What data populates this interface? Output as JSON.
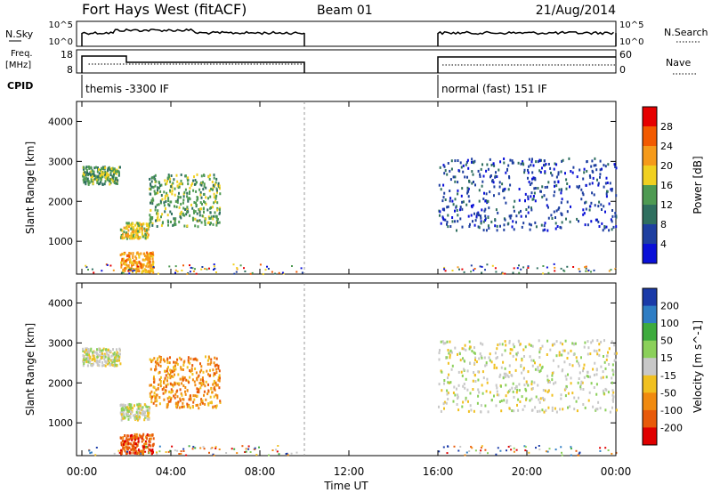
{
  "title": {
    "left": "Fort Hays West (fitACF)",
    "center": "Beam 01",
    "right": "21/Aug/2014"
  },
  "top_panels": {
    "nsky": {
      "label": "N.Sky",
      "left_ticks": [
        "10^5",
        "10^0"
      ],
      "right_ticks": [
        "10^5",
        "10^0"
      ],
      "right_label": "N.Search"
    },
    "freq": {
      "label_line1": "Freq.",
      "label_line2": "[MHz]",
      "left_ticks": [
        "18",
        "8"
      ],
      "right_ticks": [
        "60",
        "0"
      ],
      "right_label": "Nave"
    },
    "cpid": {
      "label": "CPID",
      "segments": [
        {
          "text": "themis -3300 IF",
          "start": 0,
          "end": 10
        },
        {
          "text": "normal (fast) 151 IF",
          "start": 16,
          "end": 24
        }
      ]
    }
  },
  "chart_data": [
    {
      "type": "heatmap",
      "title": "Power",
      "ylabel": "Slant Range [km]",
      "xlabel": "Time UT",
      "x_ticks": [
        "00:00",
        "04:00",
        "08:00",
        "12:00",
        "16:00",
        "20:00",
        "00:00"
      ],
      "xlim_hours": [
        0,
        24
      ],
      "y_ticks": [
        1000,
        2000,
        3000,
        4000
      ],
      "ylim": [
        180,
        4500
      ],
      "colorbar_label": "Power [dB]",
      "colorbar_ticks": [
        "28",
        "24",
        "20",
        "16",
        "12",
        "8",
        "4"
      ],
      "colorbar_colors": [
        "#e60000",
        "#f25a00",
        "#f59a1a",
        "#f0d020",
        "#4e9a52",
        "#2f6f5f",
        "#1e3fa0",
        "#0a10d8"
      ],
      "data_gap_hours": [
        10,
        16
      ],
      "echo_regions": [
        {
          "t0": 0,
          "t1": 1.7,
          "r0": 2450,
          "r1": 2900,
          "power_db": 14
        },
        {
          "t0": 1.7,
          "t1": 3.0,
          "r0": 1100,
          "r1": 1500,
          "power_db": 16
        },
        {
          "t0": 3.0,
          "t1": 6.2,
          "r0": 1400,
          "r1": 2700,
          "power_db": 14
        },
        {
          "t0": 1.7,
          "t1": 3.2,
          "r0": 250,
          "r1": 750,
          "power_db": 20
        },
        {
          "t0": 16,
          "t1": 24,
          "r0": 1300,
          "r1": 3100,
          "power_db": 6
        }
      ]
    },
    {
      "type": "heatmap",
      "title": "Velocity",
      "ylabel": "Slant Range [km]",
      "xlabel": "Time UT",
      "x_ticks": [
        "00:00",
        "04:00",
        "08:00",
        "12:00",
        "16:00",
        "20:00",
        "00:00"
      ],
      "xlim_hours": [
        0,
        24
      ],
      "y_ticks": [
        1000,
        2000,
        3000,
        4000
      ],
      "ylim": [
        180,
        4500
      ],
      "colorbar_label": "Velocity [m s^-1]",
      "colorbar_ticks": [
        "200",
        "100",
        "50",
        "15",
        "-15",
        "-50",
        "-100",
        "-200"
      ],
      "colorbar_colors": [
        "#1a3aa8",
        "#2e7dc4",
        "#3dab3d",
        "#8bd05a",
        "#c8c8c8",
        "#f0c020",
        "#f08a10",
        "#e85a0a",
        "#e00000"
      ],
      "data_gap_hours": [
        10,
        16
      ],
      "echo_regions": [
        {
          "t0": 0,
          "t1": 1.7,
          "r0": 2450,
          "r1": 2900,
          "velocity": 0
        },
        {
          "t0": 1.7,
          "t1": 3.0,
          "r0": 1100,
          "r1": 1500,
          "velocity": -10
        },
        {
          "t0": 3.0,
          "t1": 6.2,
          "r0": 1400,
          "r1": 2700,
          "velocity": -30
        },
        {
          "t0": 1.7,
          "t1": 3.2,
          "r0": 250,
          "r1": 750,
          "velocity": -80
        },
        {
          "t0": 16,
          "t1": 24,
          "r0": 1300,
          "r1": 3100,
          "velocity": 0
        }
      ]
    }
  ]
}
